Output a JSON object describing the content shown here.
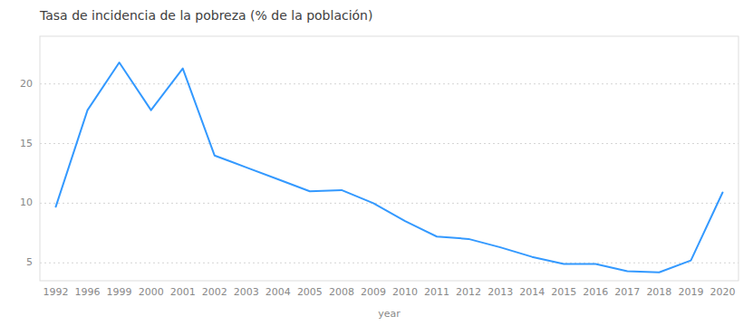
{
  "chart_data": {
    "type": "line",
    "title": "Tasa de incidencia de la pobreza (% de la población)",
    "xlabel": "year",
    "categories": [
      "1992",
      "1996",
      "1999",
      "2000",
      "2001",
      "2002",
      "2003",
      "2004",
      "2005",
      "2008",
      "2009",
      "2010",
      "2011",
      "2012",
      "2013",
      "2014",
      "2015",
      "2016",
      "2017",
      "2018",
      "2019",
      "2020"
    ],
    "values": [
      9.7,
      17.8,
      21.8,
      17.8,
      21.3,
      14.0,
      13.0,
      12.0,
      11.0,
      11.1,
      10.0,
      8.5,
      7.2,
      7.0,
      6.3,
      5.5,
      4.9,
      4.9,
      4.3,
      4.2,
      5.2,
      10.9
    ],
    "color": "#3399ff",
    "ylim": [
      3.5,
      24
    ],
    "yticks": [
      5,
      10,
      15,
      20
    ],
    "grid": true
  }
}
